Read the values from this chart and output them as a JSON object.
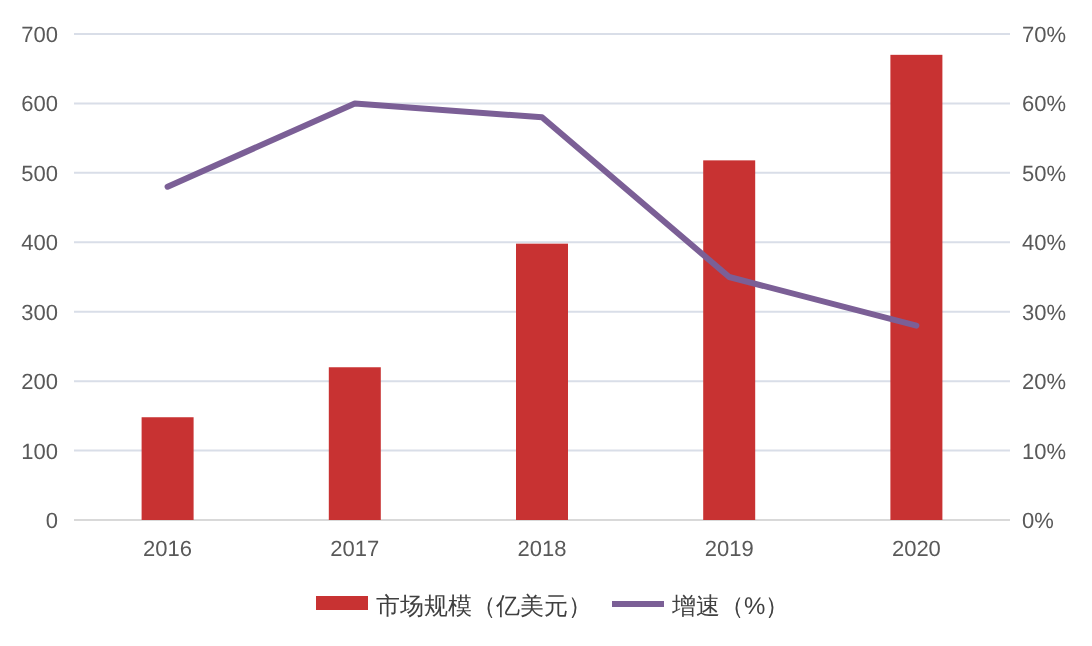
{
  "chart_data": {
    "type": "bar",
    "categories": [
      "2016",
      "2017",
      "2018",
      "2019",
      "2020"
    ],
    "series": [
      {
        "name": "市场规模（亿美元）",
        "color": "#c83232",
        "values": [
          148,
          220,
          398,
          518,
          670
        ]
      },
      {
        "name": "增速（%）",
        "type": "line",
        "axis": "y2",
        "color": "#7b5f96",
        "values": [
          48,
          60,
          58,
          35,
          28
        ]
      }
    ],
    "ylim": [
      0,
      700
    ],
    "yticks": [
      0,
      100,
      200,
      300,
      400,
      500,
      600,
      700
    ],
    "y2lim": [
      0,
      70
    ],
    "y2ticks": [
      {
        "value": 0,
        "label": "0%"
      },
      {
        "value": 10,
        "label": "10%"
      },
      {
        "value": 20,
        "label": "20%"
      },
      {
        "value": 30,
        "label": "30%"
      },
      {
        "value": 40,
        "label": "40%"
      },
      {
        "value": 50,
        "label": "50%"
      },
      {
        "value": 60,
        "label": "60%"
      },
      {
        "value": 70,
        "label": "70%"
      }
    ],
    "grid": "y",
    "legend": "bottom",
    "marker": "none",
    "line_style": "solid"
  }
}
